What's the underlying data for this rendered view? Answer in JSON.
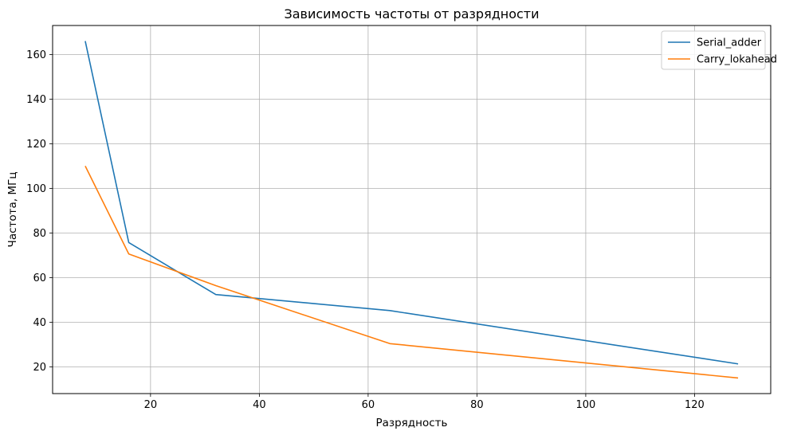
{
  "chart_data": {
    "type": "line",
    "title": "Зависимость частоты от разрядности",
    "xlabel": "Разрядность",
    "ylabel": "Частота, МГц",
    "xlim": [
      2,
      134
    ],
    "ylim": [
      8,
      173
    ],
    "xticks": [
      20,
      40,
      60,
      80,
      100,
      120
    ],
    "yticks": [
      20,
      40,
      60,
      80,
      100,
      120,
      140,
      160
    ],
    "grid": true,
    "legend_position": "top-right",
    "x": [
      8,
      16,
      32,
      64,
      128
    ],
    "series": [
      {
        "name": "Serial_adder",
        "color": "#1f77b4",
        "values": [
          166,
          75.7,
          52.4,
          45.2,
          21.3
        ]
      },
      {
        "name": "Carry_lokahead",
        "color": "#ff7f0e",
        "values": [
          110,
          70.6,
          56.4,
          30.4,
          15.0
        ]
      }
    ]
  }
}
